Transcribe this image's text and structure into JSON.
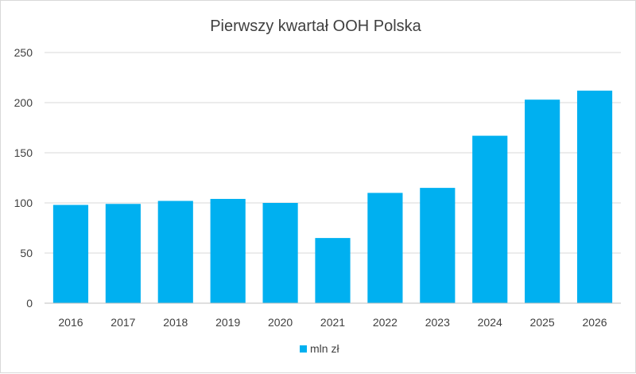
{
  "chart_data": {
    "type": "bar",
    "title": "Pierwszy kwartał OOH Polska",
    "xlabel": "",
    "ylabel": "",
    "categories": [
      "2016",
      "2017",
      "2018",
      "2019",
      "2020",
      "2021",
      "2022",
      "2023",
      "2024",
      "2025",
      "2026"
    ],
    "series": [
      {
        "name": "mln zł",
        "values": [
          98,
          99,
          102,
          104,
          100,
          65,
          110,
          115,
          167,
          203,
          212
        ],
        "color": "#00b0f0"
      }
    ],
    "ylim": [
      0,
      250
    ],
    "yticks": [
      "0",
      "50",
      "100",
      "150",
      "200",
      "250"
    ],
    "grid": true,
    "legend_position": "bottom"
  }
}
